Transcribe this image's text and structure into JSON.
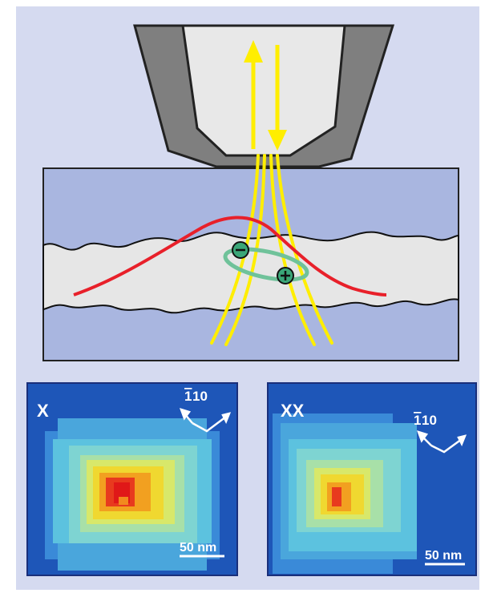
{
  "colors": {
    "background": "#d5daf0",
    "tip_outer": "#7f7f7f",
    "tip_inner": "#e8e8e8",
    "sample_barrier": "#a9b6e0",
    "quantum_well": "#e6e6e6",
    "wavefunction": "#e8202a",
    "light_beams": "#ffee00",
    "exciton_ring": "#6fc29a",
    "map_background": "#1e56b8"
  },
  "icons": [
    "minus-charge-icon",
    "plus-charge-icon",
    "direction-arrows-icon"
  ],
  "panels": [
    {
      "id": "X",
      "label": "X",
      "orientation_label_bar": "1",
      "orientation_label_rest": "10",
      "scale_label": "50 nm"
    },
    {
      "id": "XX",
      "label": "XX",
      "orientation_label_bar": "1",
      "orientation_label_rest": "10",
      "scale_label": "50 nm"
    }
  ]
}
